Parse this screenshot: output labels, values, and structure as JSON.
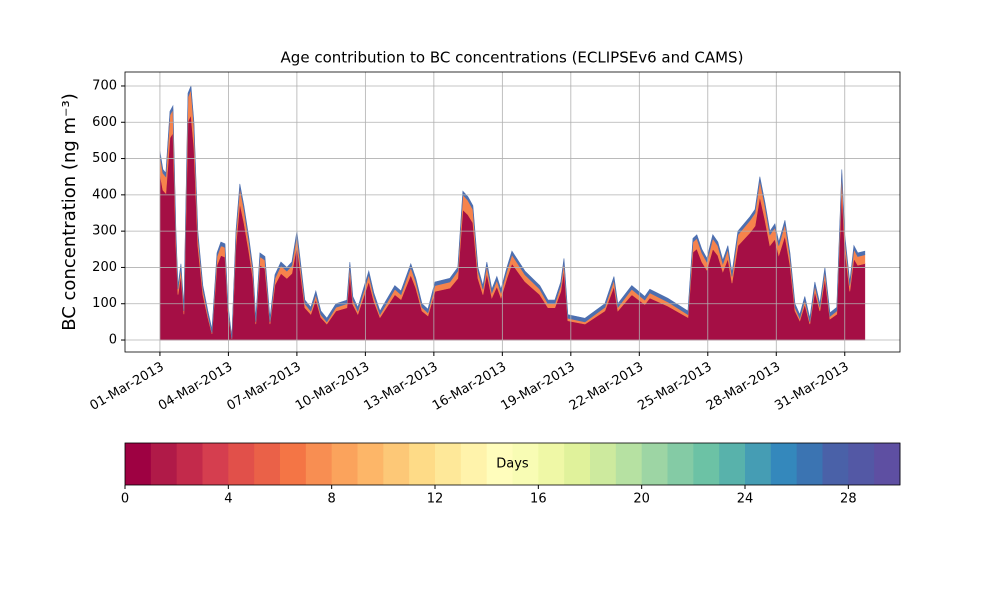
{
  "chart_data": {
    "type": "stacked_area",
    "title": "Age contribution to BC concentrations (ECLIPSEv6 and CAMS)",
    "y_label": "BC concentration (ng m⁻³)",
    "x": [
      0,
      0.13,
      0.26,
      0.44,
      0.57,
      0.7,
      0.79,
      0.92,
      1.05,
      1.23,
      1.36,
      1.49,
      1.66,
      1.88,
      2.1,
      2.28,
      2.5,
      2.67,
      2.85,
      2.98,
      3.15,
      3.33,
      3.5,
      3.68,
      3.9,
      4.07,
      4.2,
      4.38,
      4.6,
      4.82,
      5.04,
      5.3,
      5.56,
      5.78,
      6.0,
      6.13,
      6.35,
      6.61,
      6.83,
      7.05,
      7.31,
      7.71,
      8.19,
      8.32,
      8.45,
      8.67,
      9.15,
      9.37,
      9.64,
      10.29,
      10.56,
      10.99,
      11.21,
      11.48,
      11.74,
      12.05,
      12.7,
      13.05,
      13.27,
      13.49,
      13.71,
      13.93,
      14.15,
      14.32,
      14.54,
      14.76,
      14.94,
      15.2,
      15.42,
      15.99,
      16.64,
      17.0,
      17.3,
      17.56,
      17.7,
      17.87,
      18.62,
      19.49,
      19.89,
      20.06,
      20.67,
      21.24,
      21.46,
      22.25,
      23.13,
      23.35,
      23.52,
      23.74,
      23.96,
      24.22,
      24.44,
      24.66,
      24.88,
      25.06,
      25.32,
      25.85,
      26.07,
      26.28,
      26.5,
      26.72,
      26.94,
      27.11,
      27.38,
      27.6,
      27.82,
      28.03,
      28.25,
      28.47,
      28.69,
      28.91,
      29.13,
      29.35,
      29.65,
      29.87,
      30.0,
      30.22,
      30.4,
      30.57,
      30.88
    ],
    "series": [
      {
        "color": "#a50f45",
        "values": [
          458,
          413,
          404,
          557,
          570.5,
          260,
          125,
          179,
          71,
          602,
          620,
          530,
          260,
          125,
          62,
          17,
          206,
          233,
          228.5,
          80,
          3,
          260,
          377,
          323,
          242,
          170,
          44,
          206,
          197,
          44,
          152,
          183.5,
          170,
          183.5,
          260,
          197,
          89,
          71,
          111.5,
          62,
          44,
          80,
          89,
          183.5,
          98,
          71,
          161,
          107,
          62,
          125,
          111.5,
          179,
          143,
          80,
          66.5,
          134,
          143,
          170,
          359,
          345.5,
          323,
          170,
          125,
          183.5,
          116,
          147.5,
          116,
          170,
          210.5,
          161,
          125,
          89,
          89,
          134,
          192.5,
          53,
          44,
          80,
          147.5,
          80,
          125,
          98,
          116,
          93.5,
          62,
          242,
          251,
          215,
          192.5,
          251,
          233,
          188,
          224,
          156.5,
          260,
          296,
          314,
          395,
          332,
          260,
          278,
          233,
          287,
          206,
          80,
          53,
          98,
          44,
          134,
          80,
          170,
          57.5,
          71,
          413,
          251,
          134,
          224,
          206,
          210.5
        ]
      },
      {
        "color": "#f6834c",
        "values": [
          52,
          47,
          46,
          63,
          64.5,
          30,
          15,
          21,
          9,
          68,
          70,
          60,
          30,
          15,
          8,
          3,
          24,
          27,
          26.5,
          10,
          1,
          30,
          43,
          37,
          28,
          20,
          6,
          24,
          23,
          6,
          18,
          21.5,
          20,
          21.5,
          30,
          23,
          11,
          9,
          13.5,
          8,
          6,
          10,
          11,
          21.5,
          12,
          9,
          19,
          13,
          8,
          15,
          13.5,
          21,
          17,
          10,
          8.5,
          16,
          17,
          20,
          41,
          39.5,
          37,
          20,
          15,
          21.5,
          14,
          17.5,
          14,
          20,
          24.5,
          19,
          15,
          11,
          11,
          16,
          22.5,
          7,
          6,
          10,
          17.5,
          10,
          15,
          12,
          14,
          11.5,
          8,
          28,
          29,
          25,
          22.5,
          29,
          27,
          22,
          26,
          18.5,
          30,
          34,
          36,
          45,
          38,
          30,
          32,
          27,
          33,
          24,
          10,
          7,
          12,
          6,
          16,
          10,
          20,
          7.5,
          9,
          47,
          29,
          16,
          26,
          24,
          24.5
        ]
      },
      {
        "color": "#4d6fb0",
        "values": [
          10,
          10,
          10,
          10,
          10,
          10,
          10,
          10,
          10,
          10,
          10,
          10,
          10,
          10,
          10,
          10,
          10,
          10,
          10,
          10,
          1,
          10,
          10,
          10,
          10,
          10,
          10,
          10,
          10,
          10,
          10,
          10,
          10,
          10,
          10,
          10,
          10,
          10,
          10,
          10,
          10,
          10,
          10,
          10,
          10,
          10,
          10,
          10,
          10,
          10,
          10,
          10,
          10,
          10,
          10,
          10,
          10,
          10,
          10,
          10,
          10,
          10,
          10,
          10,
          10,
          10,
          10,
          10,
          10,
          10,
          10,
          10,
          10,
          10,
          10,
          10,
          10,
          10,
          10,
          10,
          10,
          10,
          10,
          10,
          10,
          10,
          10,
          10,
          10,
          10,
          10,
          10,
          10,
          10,
          10,
          10,
          10,
          10,
          10,
          10,
          10,
          10,
          10,
          10,
          10,
          10,
          10,
          10,
          10,
          10,
          10,
          10,
          10,
          10,
          10,
          10,
          10,
          10,
          10
        ]
      }
    ],
    "xlim": [
      -1.53,
      32.42
    ],
    "xticks": [
      {
        "value": 0,
        "label": "01-Mar-2013"
      },
      {
        "value": 3,
        "label": "04-Mar-2013"
      },
      {
        "value": 6,
        "label": "07-Mar-2013"
      },
      {
        "value": 9,
        "label": "10-Mar-2013"
      },
      {
        "value": 12,
        "label": "13-Mar-2013"
      },
      {
        "value": 15,
        "label": "16-Mar-2013"
      },
      {
        "value": 18,
        "label": "19-Mar-2013"
      },
      {
        "value": 21,
        "label": "22-Mar-2013"
      },
      {
        "value": 24,
        "label": "25-Mar-2013"
      },
      {
        "value": 27,
        "label": "28-Mar-2013"
      },
      {
        "value": 30,
        "label": "31-Mar-2013"
      }
    ],
    "ylim": [
      -33,
      738.5
    ],
    "yticks": [
      0,
      100,
      200,
      300,
      400,
      500,
      600,
      700
    ],
    "grid": true,
    "colorbar": {
      "label": "Days",
      "lim": [
        0,
        30
      ],
      "ticks": [
        0,
        4,
        8,
        12,
        16,
        20,
        24,
        28
      ],
      "colors": [
        "#9e0142",
        "#b01a48",
        "#c32a4b",
        "#d53e4f",
        "#e1504a",
        "#ea6148",
        "#f47545",
        "#f88e52",
        "#fba35c",
        "#fdb668",
        "#fdc877",
        "#fedb87",
        "#fee899",
        "#fff3ab",
        "#fffdbc",
        "#f8fcb4",
        "#eff8a6",
        "#e0f29b",
        "#cdea9e",
        "#b6e1a2",
        "#9dd5a4",
        "#84cba5",
        "#6cc2a5",
        "#58b2ab",
        "#459db4",
        "#3488bc",
        "#3b74b2",
        "#4a61a8",
        "#5358a5",
        "#5e4fa2"
      ]
    }
  }
}
